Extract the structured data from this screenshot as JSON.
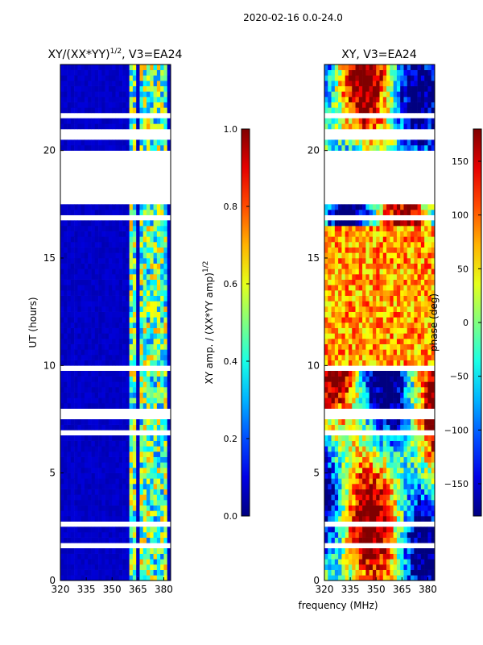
{
  "suptitle": "2020-02-16 0.0-24.0",
  "chart_data": [
    {
      "type": "heatmap",
      "title_text": "XY/(XX*YY)",
      "title_exponent": "1/2",
      "title_suffix": ", V3=EA24",
      "xlabel": "",
      "ylabel": "UT (hours)",
      "xlim": [
        320,
        384
      ],
      "ylim": [
        0,
        24
      ],
      "xticks": [
        "320",
        "335",
        "350",
        "365",
        "380"
      ],
      "xtick_values": [
        320,
        335,
        350,
        365,
        380
      ],
      "yticks": [
        "0",
        "5",
        "10",
        "15",
        "20"
      ],
      "ytick_values": [
        0,
        5,
        10,
        15,
        20
      ],
      "colormap": "jet",
      "colorbar": {
        "label_text": "XY amp. / (XX*YY amp)",
        "label_exponent": "1/2",
        "range": [
          0.0,
          1.0
        ],
        "ticks": [
          "0.0",
          "0.2",
          "0.4",
          "0.6",
          "0.8",
          "1.0"
        ],
        "tick_values": [
          0.0,
          0.2,
          0.4,
          0.6,
          0.8,
          1.0
        ]
      },
      "gap_hours": [
        [
          17.6,
          20.0
        ],
        [
          20.6,
          20.9
        ],
        [
          16.8,
          16.95
        ],
        [
          7.7,
          7.85
        ],
        [
          1.5,
          1.65
        ],
        [
          6.8,
          6.9
        ],
        [
          9.8,
          9.9
        ],
        [
          21.6,
          21.7
        ],
        [
          2.6,
          2.7
        ]
      ],
      "channel_columns_mhz": [
        [
          361,
          364
        ],
        [
          366,
          369
        ],
        [
          371,
          373
        ],
        [
          375,
          377
        ],
        [
          379,
          381
        ]
      ]
    },
    {
      "type": "heatmap",
      "title_text": "XY, V3=EA24",
      "xlabel": "frequency (MHz)",
      "ylabel": "",
      "xlim": [
        320,
        384
      ],
      "ylim": [
        0,
        24
      ],
      "xticks": [
        "320",
        "335",
        "350",
        "365",
        "380"
      ],
      "xtick_values": [
        320,
        335,
        350,
        365,
        380
      ],
      "yticks": [
        "0",
        "5",
        "10",
        "15",
        "20"
      ],
      "ytick_values": [
        0,
        5,
        10,
        15,
        20
      ],
      "colormap": "jet",
      "colorbar": {
        "label_text": "phase (deg)",
        "range": [
          -180,
          180
        ],
        "ticks": [
          "−150",
          "−100",
          "−50",
          "0",
          "50",
          "100",
          "150"
        ],
        "tick_values": [
          -150,
          -100,
          -50,
          0,
          50,
          100,
          150
        ]
      },
      "gap_hours": [
        [
          17.6,
          20.0
        ],
        [
          20.6,
          20.9
        ],
        [
          16.8,
          16.95
        ],
        [
          7.7,
          7.85
        ],
        [
          1.5,
          1.65
        ],
        [
          6.8,
          6.9
        ],
        [
          9.8,
          9.9
        ],
        [
          21.6,
          21.7
        ],
        [
          2.6,
          2.7
        ]
      ]
    }
  ]
}
